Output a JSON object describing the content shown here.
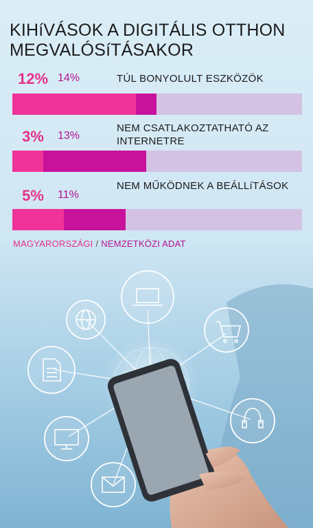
{
  "chart_data": {
    "type": "bar",
    "title": "KIHíVÁSOK A DIGITÁLIS OTTHON MEGVALÓSíTÁSAKOR",
    "categories": [
      "TÚL BONYOLULT ESZKÖZÖK",
      "NEM CSATLAKOZTATHATÓ AZ INTERNETRE",
      "NEM MŰKÖDNEK A BEÁLLíTÁSOK"
    ],
    "series": [
      {
        "name": "MAGYARORSZÁGI",
        "values": [
          12,
          3,
          5
        ],
        "labels": [
          "12%",
          "3%",
          "5%"
        ],
        "color": "#f0339a"
      },
      {
        "name": "NEMZETKÖZI ADAT",
        "values": [
          14,
          13,
          11
        ],
        "labels": [
          "14%",
          "13%",
          "11%"
        ],
        "color": "#c8129c"
      }
    ],
    "ylim": [
      0,
      100
    ],
    "track_color": "#d3c2e3",
    "legend": {
      "hu": "MAGYARORSZÁGI",
      "sep": "/",
      "int": "NEMZETKÖZI ADAT"
    }
  },
  "illustration": {
    "icons": [
      "globe-icon",
      "laptop-icon",
      "shopping-cart-icon",
      "document-icon",
      "headset-icon",
      "monitor-icon",
      "envelope-icon"
    ]
  }
}
